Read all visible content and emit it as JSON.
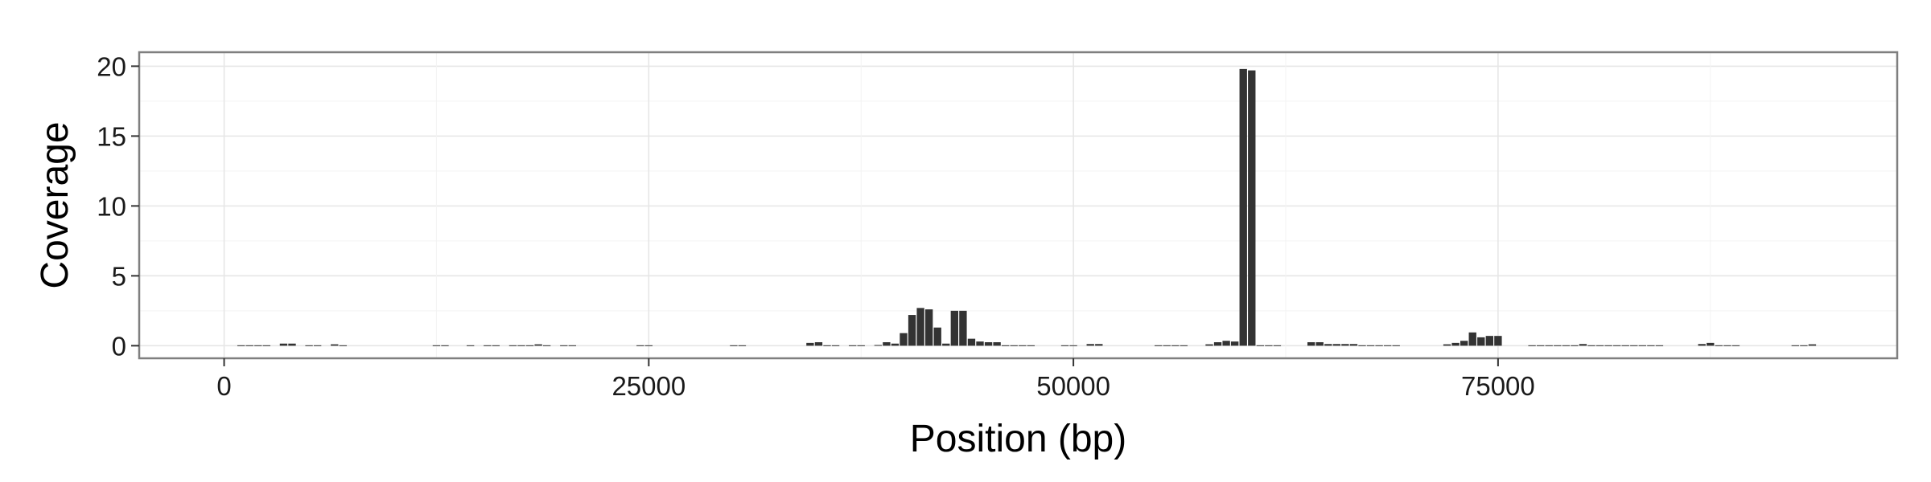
{
  "chart_data": {
    "type": "bar",
    "title": "",
    "xlabel": "Position (bp)",
    "ylabel": "Coverage",
    "xlim": [
      -5000,
      98500
    ],
    "ylim": [
      -0.9,
      21
    ],
    "x_ticks": [
      0,
      25000,
      50000,
      75000
    ],
    "x_tick_labels": [
      "0",
      "25000",
      "50000",
      "75000"
    ],
    "y_ticks": [
      0,
      5,
      10,
      15,
      20
    ],
    "y_tick_labels": [
      "0",
      "5",
      "10",
      "15",
      "20"
    ],
    "grid": true,
    "bar_color": "#333333",
    "bin_width": 500,
    "x": [
      1000,
      1500,
      2000,
      2500,
      3500,
      4000,
      5000,
      5500,
      6500,
      7000,
      12500,
      13000,
      14500,
      15500,
      16000,
      17000,
      17500,
      18000,
      18500,
      19000,
      20000,
      20500,
      24500,
      25000,
      30000,
      30500,
      34500,
      35000,
      35500,
      36000,
      37000,
      37500,
      38500,
      39000,
      39500,
      40000,
      40500,
      41000,
      41500,
      42000,
      42500,
      43000,
      43500,
      44000,
      44500,
      45000,
      45500,
      46000,
      46500,
      47000,
      47500,
      49500,
      50000,
      51000,
      51500,
      55000,
      55500,
      56000,
      56500,
      58000,
      58500,
      59000,
      59500,
      60000,
      60500,
      61000,
      61500,
      62000,
      64000,
      64500,
      65000,
      65500,
      66000,
      66500,
      67000,
      67500,
      68000,
      68500,
      69000,
      72000,
      72500,
      73000,
      73500,
      74000,
      74500,
      75000,
      77000,
      77500,
      78000,
      78500,
      79000,
      79500,
      80000,
      80500,
      81000,
      81500,
      82000,
      82500,
      83000,
      83500,
      84000,
      84500,
      87000,
      87500,
      88000,
      88500,
      89000,
      92500,
      93000,
      93500
    ],
    "values": [
      0.03,
      0.03,
      0.03,
      0.03,
      0.15,
      0.15,
      0.03,
      0.03,
      0.1,
      0.03,
      0.03,
      0.03,
      0.03,
      0.03,
      0.03,
      0.03,
      0.03,
      0.03,
      0.1,
      0.03,
      0.03,
      0.03,
      0.03,
      0.03,
      0.03,
      0.03,
      0.2,
      0.25,
      0.03,
      0.03,
      0.03,
      0.03,
      0.05,
      0.25,
      0.15,
      0.9,
      2.2,
      2.7,
      2.6,
      1.3,
      0.15,
      2.5,
      2.5,
      0.5,
      0.3,
      0.25,
      0.25,
      0.03,
      0.03,
      0.03,
      0.03,
      0.03,
      0.03,
      0.12,
      0.12,
      0.03,
      0.03,
      0.03,
      0.03,
      0.1,
      0.25,
      0.35,
      0.3,
      19.8,
      19.7,
      0.03,
      0.03,
      0.03,
      0.25,
      0.25,
      0.12,
      0.12,
      0.12,
      0.12,
      0.03,
      0.03,
      0.03,
      0.03,
      0.03,
      0.1,
      0.2,
      0.35,
      0.95,
      0.6,
      0.7,
      0.7,
      0.03,
      0.03,
      0.03,
      0.03,
      0.03,
      0.03,
      0.12,
      0.03,
      0.03,
      0.03,
      0.03,
      0.03,
      0.03,
      0.03,
      0.03,
      0.03,
      0.12,
      0.2,
      0.03,
      0.03,
      0.03,
      0.03,
      0.03,
      0.1
    ]
  }
}
